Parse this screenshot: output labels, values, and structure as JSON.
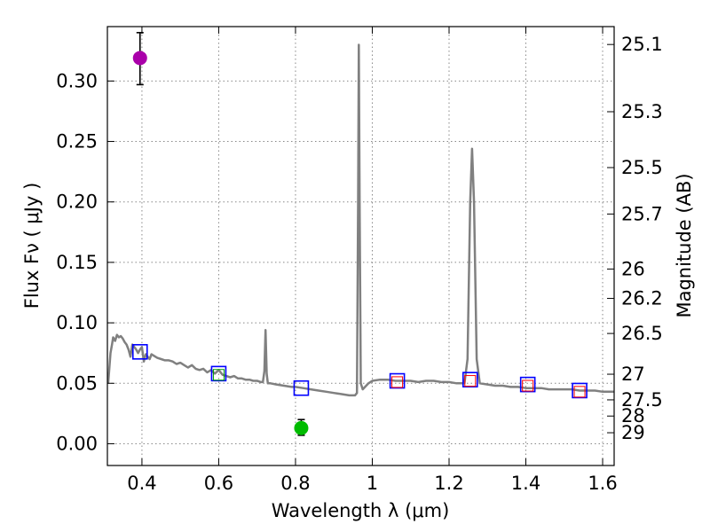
{
  "chart_data": {
    "type": "line",
    "title": "",
    "xlabel": "Wavelength  λ (μm)",
    "ylabel_left": "Flux  Fν  ( μJy )",
    "ylabel_right": "Magnitude (AB)",
    "xlim": [
      0.31,
      1.63
    ],
    "ylim": [
      -0.018,
      0.345
    ],
    "grid": true,
    "x_ticks": [
      0.4,
      0.6,
      0.8,
      1.0,
      1.2,
      1.4,
      1.6
    ],
    "x_tick_labels": [
      "0.4",
      "0.6",
      "0.8",
      "1",
      "1.2",
      "1.4",
      "1.6"
    ],
    "y_ticks": [
      0.0,
      0.05,
      0.1,
      0.15,
      0.2,
      0.25,
      0.3
    ],
    "y_tick_labels": [
      "0.00",
      "0.05",
      "0.10",
      "0.15",
      "0.20",
      "0.25",
      "0.30"
    ],
    "right_ticks": [
      {
        "label": "25.1",
        "flux": 0.3302
      },
      {
        "label": "25.3",
        "flux": 0.2746
      },
      {
        "label": "25.5",
        "flux": 0.2284
      },
      {
        "label": "25.7",
        "flux": 0.19
      },
      {
        "label": "26",
        "flux": 0.1445
      },
      {
        "label": "26.2",
        "flux": 0.1202
      },
      {
        "label": "26.5",
        "flux": 0.0912
      },
      {
        "label": "27",
        "flux": 0.0575
      },
      {
        "label": "27.5",
        "flux": 0.0363
      },
      {
        "label": "28",
        "flux": 0.0229
      },
      {
        "label": "29",
        "flux": 0.0091
      }
    ],
    "series": [
      {
        "name": "model spectrum",
        "color": "#808080",
        "x": [
          0.312,
          0.318,
          0.322,
          0.325,
          0.33,
          0.335,
          0.34,
          0.345,
          0.35,
          0.355,
          0.36,
          0.365,
          0.37,
          0.375,
          0.38,
          0.385,
          0.39,
          0.395,
          0.4,
          0.405,
          0.41,
          0.415,
          0.42,
          0.425,
          0.43,
          0.44,
          0.45,
          0.46,
          0.47,
          0.48,
          0.49,
          0.5,
          0.51,
          0.52,
          0.53,
          0.54,
          0.55,
          0.56,
          0.57,
          0.58,
          0.59,
          0.6,
          0.61,
          0.62,
          0.63,
          0.64,
          0.65,
          0.66,
          0.67,
          0.68,
          0.69,
          0.7,
          0.71,
          0.715,
          0.719,
          0.722,
          0.725,
          0.728,
          0.735,
          0.75,
          0.77,
          0.79,
          0.8,
          0.82,
          0.84,
          0.86,
          0.88,
          0.9,
          0.92,
          0.94,
          0.955,
          0.96,
          0.963,
          0.965,
          0.967,
          0.97,
          0.975,
          0.99,
          1.0,
          1.02,
          1.04,
          1.06,
          1.08,
          1.1,
          1.12,
          1.14,
          1.16,
          1.18,
          1.2,
          1.22,
          1.24,
          1.248,
          1.255,
          1.26,
          1.265,
          1.272,
          1.28,
          1.3,
          1.32,
          1.34,
          1.36,
          1.38,
          1.4,
          1.42,
          1.44,
          1.46,
          1.48,
          1.5,
          1.52,
          1.54,
          1.56,
          1.58,
          1.6,
          1.63
        ],
        "values": [
          0.05,
          0.075,
          0.082,
          0.088,
          0.085,
          0.09,
          0.088,
          0.089,
          0.087,
          0.084,
          0.082,
          0.078,
          0.072,
          0.082,
          0.08,
          0.078,
          0.075,
          0.078,
          0.08,
          0.068,
          0.074,
          0.072,
          0.07,
          0.074,
          0.073,
          0.071,
          0.07,
          0.069,
          0.069,
          0.068,
          0.066,
          0.067,
          0.065,
          0.063,
          0.065,
          0.062,
          0.061,
          0.062,
          0.059,
          0.061,
          0.058,
          0.061,
          0.057,
          0.056,
          0.055,
          0.056,
          0.054,
          0.054,
          0.053,
          0.053,
          0.052,
          0.052,
          0.051,
          0.051,
          0.06,
          0.094,
          0.058,
          0.05,
          0.05,
          0.049,
          0.048,
          0.047,
          0.047,
          0.046,
          0.045,
          0.044,
          0.043,
          0.042,
          0.041,
          0.04,
          0.04,
          0.042,
          0.2,
          0.33,
          0.2,
          0.05,
          0.045,
          0.05,
          0.052,
          0.053,
          0.053,
          0.052,
          0.052,
          0.052,
          0.051,
          0.052,
          0.052,
          0.051,
          0.051,
          0.05,
          0.05,
          0.07,
          0.2,
          0.244,
          0.2,
          0.07,
          0.05,
          0.049,
          0.048,
          0.048,
          0.047,
          0.047,
          0.046,
          0.046,
          0.046,
          0.045,
          0.045,
          0.045,
          0.045,
          0.044,
          0.044,
          0.044,
          0.043,
          0.043
        ]
      },
      {
        "name": "blue squares",
        "color": "#0000ff",
        "marker": "square",
        "x": [
          0.395,
          0.6,
          0.815,
          1.065,
          1.255,
          1.405,
          1.54
        ],
        "values": [
          0.076,
          0.058,
          0.046,
          0.052,
          0.053,
          0.049,
          0.044
        ]
      },
      {
        "name": "red squares",
        "color": "#ff0000",
        "marker": "square",
        "x": [
          1.065,
          1.255,
          1.405,
          1.54
        ],
        "values": [
          0.051,
          0.052,
          0.048,
          0.043
        ]
      },
      {
        "name": "green squares",
        "color": "#00a000",
        "marker": "square",
        "x": [
          0.6
        ],
        "values": [
          0.057
        ]
      },
      {
        "name": "purple point",
        "color": "#aa00aa",
        "marker": "circle",
        "x": [
          0.395
        ],
        "values": [
          0.319
        ],
        "yerr_low": [
          0.297
        ],
        "yerr_high": [
          0.34
        ]
      },
      {
        "name": "green point",
        "color": "#00bb00",
        "marker": "circle",
        "x": [
          0.815
        ],
        "values": [
          0.013
        ],
        "yerr_low": [
          0.007
        ],
        "yerr_high": [
          0.02
        ]
      }
    ]
  }
}
